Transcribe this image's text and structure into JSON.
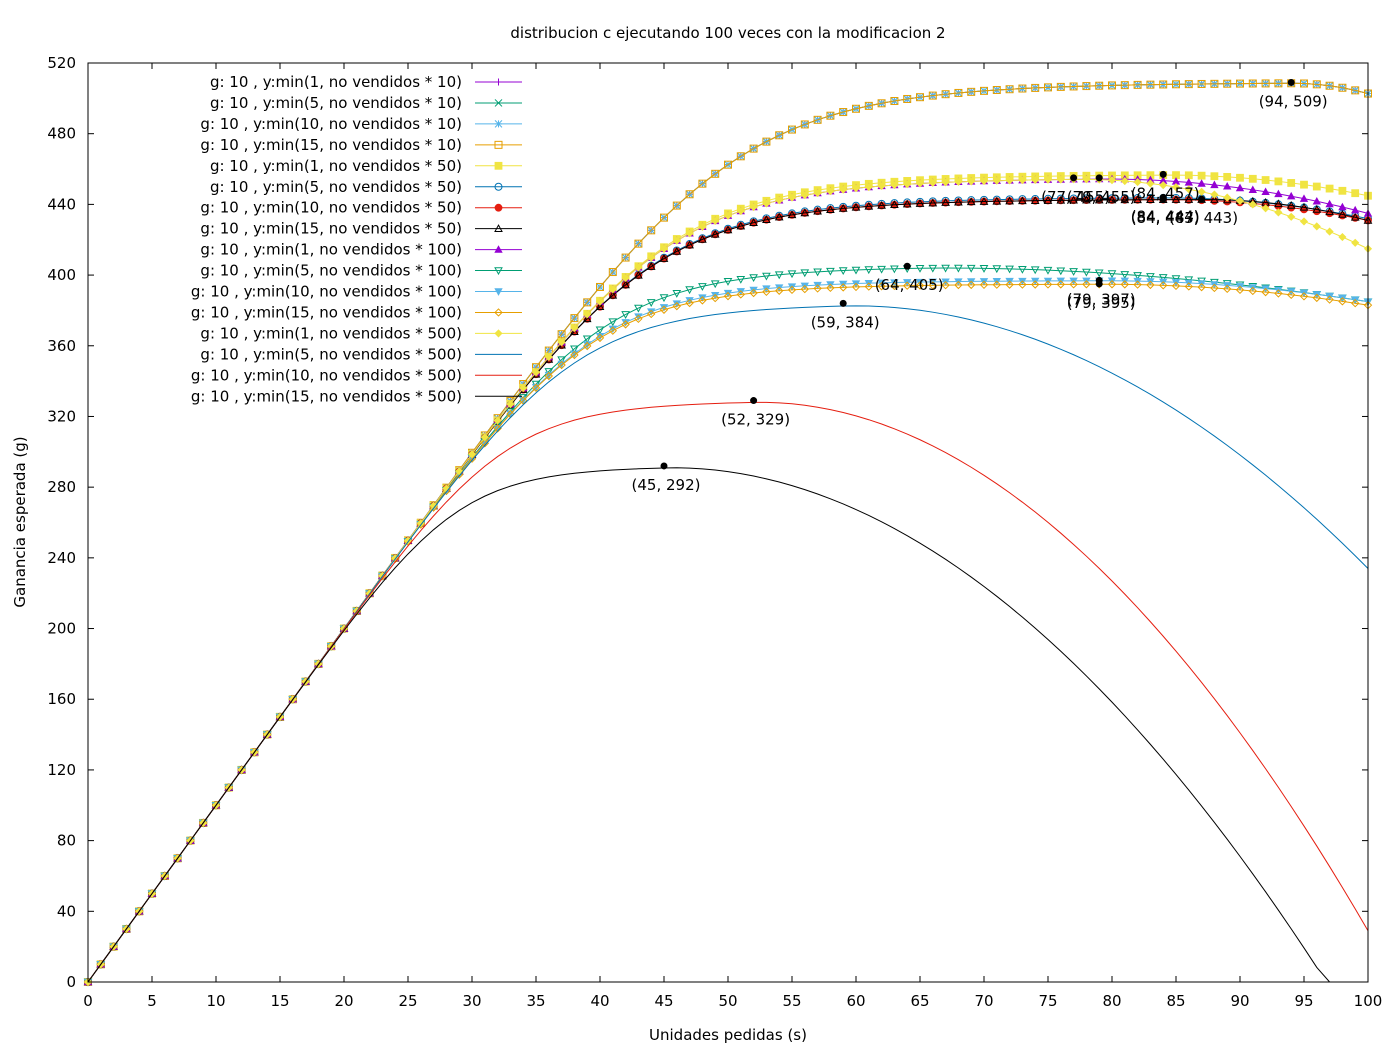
{
  "chart_data": {
    "type": "line",
    "title": "distribucion c ejecutando 100 veces con la modificacion 2",
    "xlabel": "Unidades pedidas (s)",
    "ylabel": "Ganancia esperada (g)",
    "xlim": [
      0,
      100
    ],
    "ylim": [
      0,
      520
    ],
    "xticks": [
      "0",
      "5",
      "10",
      "15",
      "20",
      "25",
      "30",
      "35",
      "40",
      "45",
      "50",
      "55",
      "60",
      "65",
      "70",
      "75",
      "80",
      "85",
      "90",
      "95",
      "100"
    ],
    "yticks": [
      "0",
      "40",
      "80",
      "120",
      "160",
      "200",
      "240",
      "280",
      "320",
      "360",
      "400",
      "440",
      "480",
      "520"
    ],
    "grid": false,
    "legend_position": "top-left",
    "series": [
      {
        "name": "g: 10 , y:min(1, no vendidos * 10)",
        "color": "#9400d3",
        "marker": "plus",
        "cap": 509,
        "k": 0.5,
        "d": 6,
        "peak_x": 94
      },
      {
        "name": "g: 10 , y:min(5, no vendidos * 10)",
        "color": "#009e73",
        "marker": "cross",
        "cap": 509,
        "k": 0.5,
        "d": 6,
        "peak_x": 94
      },
      {
        "name": "g: 10 , y:min(10, no vendidos * 10)",
        "color": "#56b4e9",
        "marker": "star",
        "cap": 509,
        "k": 0.5,
        "d": 6,
        "peak_x": 94
      },
      {
        "name": "g: 10 , y:min(15, no vendidos * 10)",
        "color": "#e69f00",
        "marker": "square-open",
        "cap": 509,
        "k": 0.5,
        "d": 6,
        "peak_x": 94
      },
      {
        "name": "g: 10 , y:min(1, no vendidos * 50)",
        "color": "#f0e442",
        "marker": "square",
        "cap": 457,
        "k": 0.47,
        "d": 12,
        "peak_x": 84
      },
      {
        "name": "g: 10 , y:min(5, no vendidos * 50)",
        "color": "#0072b2",
        "marker": "circle-open",
        "cap": 444,
        "k": 0.45,
        "d": 12,
        "peak_x": 84
      },
      {
        "name": "g: 10 , y:min(10, no vendidos * 50)",
        "color": "#e51e10",
        "marker": "circle",
        "cap": 443,
        "k": 0.43,
        "d": 12,
        "peak_x": 84
      },
      {
        "name": "g: 10 , y:min(15, no vendidos * 50)",
        "color": "#000000",
        "marker": "triangle-open",
        "cap": 443,
        "k": 0.42,
        "d": 12,
        "peak_x": 87
      },
      {
        "name": "g: 10 , y:min(1, no vendidos * 100)",
        "color": "#9400d3",
        "marker": "triangle",
        "cap": 455,
        "k": 0.52,
        "d": 20,
        "peak_x": 79
      },
      {
        "name": "g: 10 , y:min(5, no vendidos * 100)",
        "color": "#009e73",
        "marker": "triangle-down-open",
        "cap": 405,
        "k": 0.5,
        "d": 20,
        "peak_x": 64
      },
      {
        "name": "g: 10 , y:min(10, no vendidos * 100)",
        "color": "#56b4e9",
        "marker": "triangle-down",
        "cap": 397,
        "k": 0.45,
        "d": 12,
        "peak_x": 79
      },
      {
        "name": "g: 10 , y:min(15, no vendidos * 100)",
        "color": "#e69f00",
        "marker": "diamond-open",
        "cap": 395,
        "k": 0.45,
        "d": 12,
        "peak_x": 79
      },
      {
        "name": "g: 10 , y:min(1, no vendidos * 500)",
        "color": "#f0e442",
        "marker": "diamond",
        "cap": 455,
        "k": 0.55,
        "d": 40,
        "peak_x": 77
      },
      {
        "name": "g: 10 , y:min(5, no vendidos * 500)",
        "color": "#0072b2",
        "marker": "none",
        "cap": 384,
        "k": 0.55,
        "d": 150,
        "peak_x": 59
      },
      {
        "name": "g: 10 , y:min(10, no vendidos * 500)",
        "color": "#e51e10",
        "marker": "none",
        "cap": 329,
        "k": 0.6,
        "d": 300,
        "peak_x": 52
      },
      {
        "name": "g: 10 , y:min(15, no vendidos * 500)",
        "color": "#000000",
        "marker": "none",
        "cap": 292,
        "k": 0.6,
        "d": 330,
        "peak_x": 45
      }
    ],
    "annotations": [
      {
        "label": "(94, 509)",
        "x": 94,
        "y": 509
      },
      {
        "label": "(84, 457)",
        "x": 84,
        "y": 457
      },
      {
        "label": "(77, 455)",
        "x": 77,
        "y": 455
      },
      {
        "label": "(79, 455)",
        "x": 79,
        "y": 455
      },
      {
        "label": "(84, 444)",
        "x": 84,
        "y": 444
      },
      {
        "label": "(84, 443)",
        "x": 84,
        "y": 443
      },
      {
        "label": "(87, 443)",
        "x": 87,
        "y": 443
      },
      {
        "label": "(64, 405)",
        "x": 64,
        "y": 405
      },
      {
        "label": "(79, 397)",
        "x": 79,
        "y": 397
      },
      {
        "label": "(79, 395)",
        "x": 79,
        "y": 395
      },
      {
        "label": "(59, 384)",
        "x": 59,
        "y": 384
      },
      {
        "label": "(52, 329)",
        "x": 52,
        "y": 329
      },
      {
        "label": "(45, 292)",
        "x": 45,
        "y": 292
      }
    ]
  }
}
